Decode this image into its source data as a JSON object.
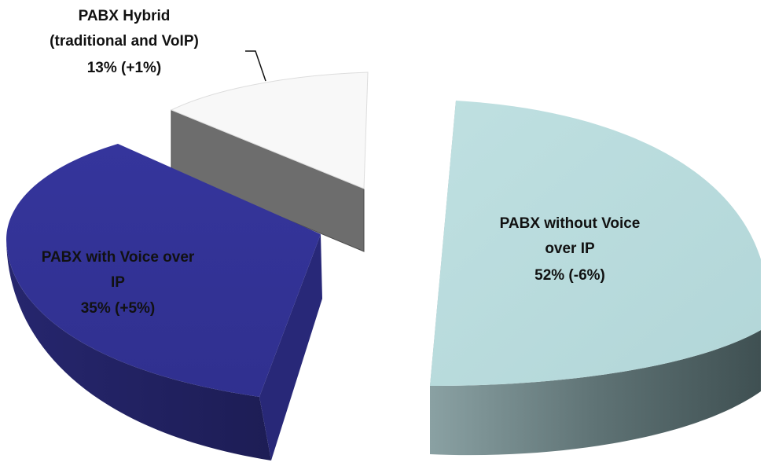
{
  "chart_data": {
    "type": "pie",
    "title": "",
    "slices": [
      {
        "label_lines": [
          "PABX without Voice",
          "over IP"
        ],
        "value_text": "52% (-6%)",
        "value": 52,
        "change": -6,
        "color": "#b8dcdd"
      },
      {
        "label_lines": [
          "PABX with Voice over",
          "IP"
        ],
        "value_text": "35% (+5%)",
        "value": 35,
        "change": 5,
        "color": "#333399"
      },
      {
        "label_lines": [
          "PABX Hybrid",
          "(traditional and VoIP)"
        ],
        "value_text": "13% (+1%)",
        "value": 13,
        "change": 1,
        "color": "#f8f8f8"
      }
    ],
    "style": "3D exploded pie",
    "legend": "none"
  }
}
